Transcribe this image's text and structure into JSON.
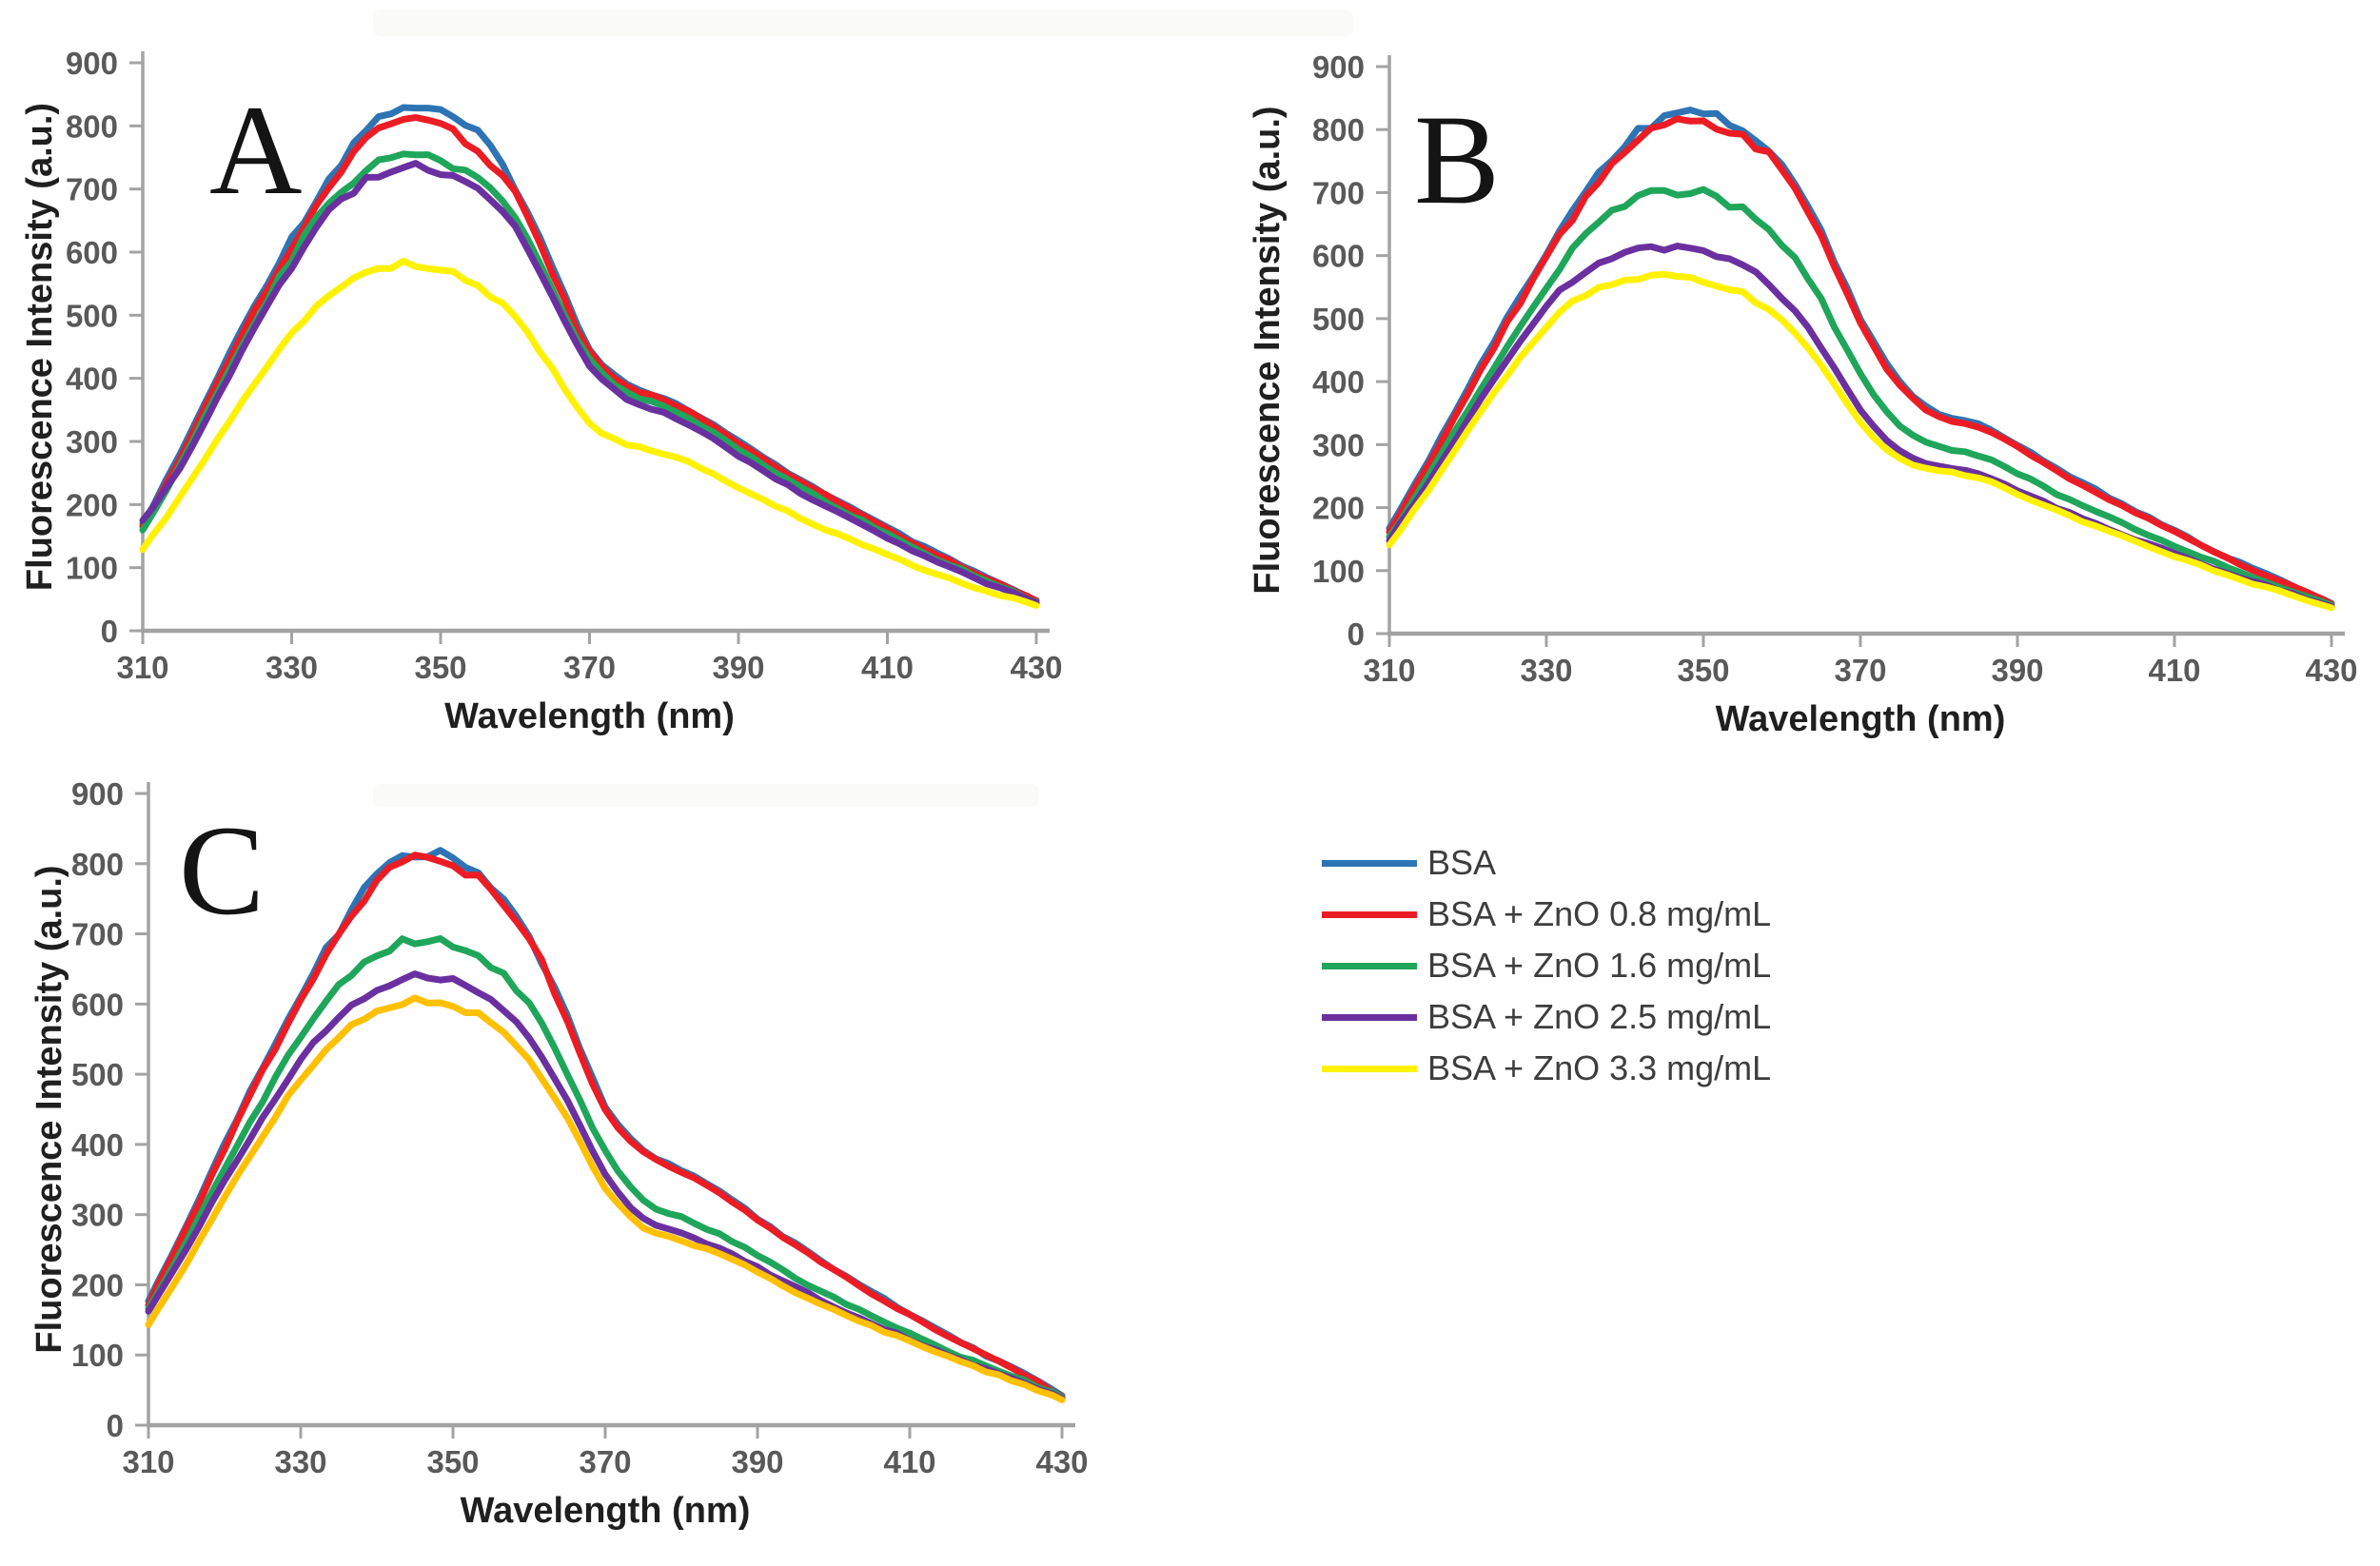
{
  "figure": {
    "panels": [
      "A",
      "B",
      "C"
    ]
  },
  "axes": {
    "xlabel": "Wavelength (nm)",
    "ylabel": "Fluorescence Intensity (a.u.)",
    "xticks": [
      310,
      330,
      350,
      370,
      390,
      410,
      430
    ],
    "yticks": [
      0,
      100,
      200,
      300,
      400,
      500,
      600,
      700,
      800,
      900
    ]
  },
  "colors": {
    "bsa_blue": "#2E74B5",
    "zno08_red": "#EC1C24",
    "zno16_green": "#1FA65A",
    "zno25_purple": "#6B30A0",
    "zno33_yellow": "#FFF200",
    "zno33_orange_panelC": "#FFC000",
    "axis_gray": "#A3A3A3",
    "tick_label_gray": "#595959"
  },
  "legend": {
    "position": "right-middle",
    "items": [
      {
        "label": "BSA",
        "color": "#2E74B5"
      },
      {
        "label": "BSA + ZnO 0.8 mg/mL",
        "color": "#EC1C24"
      },
      {
        "label": "BSA + ZnO 1.6 mg/mL",
        "color": "#1FA65A"
      },
      {
        "label": "BSA + ZnO 2.5 mg/mL",
        "color": "#6B30A0"
      },
      {
        "label": "BSA + ZnO 3.3 mg/mL",
        "color": "#FFF200"
      }
    ]
  },
  "chart_data": [
    {
      "type": "line",
      "panel": "A",
      "title": "",
      "xlabel": "Wavelength (nm)",
      "ylabel": "Fluorescence Intensity (a.u.)",
      "xlim": [
        310,
        430
      ],
      "ylim": [
        0,
        900
      ],
      "xticks": [
        310,
        330,
        350,
        370,
        390,
        410,
        430
      ],
      "yticks": [
        0,
        100,
        200,
        300,
        400,
        500,
        600,
        700,
        800,
        900
      ],
      "grid": false,
      "x": [
        310,
        315,
        320,
        325,
        330,
        335,
        340,
        345,
        350,
        355,
        360,
        365,
        370,
        375,
        380,
        385,
        390,
        395,
        400,
        405,
        410,
        415,
        420,
        425,
        430
      ],
      "series": [
        {
          "name": "BSA",
          "color": "#2E74B5",
          "values": [
            168,
            280,
            400,
            515,
            620,
            715,
            795,
            830,
            820,
            785,
            706,
            576,
            448,
            392,
            368,
            338,
            300,
            262,
            228,
            195,
            163,
            132,
            103,
            75,
            48
          ]
        },
        {
          "name": "BSA + ZnO 0.8 mg/mL",
          "color": "#EC1C24",
          "values": [
            164,
            272,
            392,
            505,
            610,
            703,
            782,
            812,
            800,
            764,
            690,
            566,
            442,
            388,
            366,
            336,
            298,
            260,
            226,
            193,
            161,
            130,
            101,
            74,
            47
          ]
        },
        {
          "name": "BSA + ZnO 1.6 mg/mL",
          "color": "#1FA65A",
          "values": [
            158,
            262,
            378,
            488,
            590,
            678,
            731,
            757,
            748,
            716,
            652,
            542,
            430,
            378,
            355,
            325,
            288,
            250,
            216,
            184,
            153,
            123,
            96,
            71,
            45
          ]
        },
        {
          "name": "BSA + ZnO 2.5 mg/mL",
          "color": "#6B30A0",
          "values": [
            174,
            258,
            368,
            478,
            578,
            663,
            714,
            737,
            728,
            698,
            638,
            530,
            420,
            368,
            345,
            315,
            278,
            241,
            208,
            177,
            147,
            118,
            92,
            68,
            44
          ]
        },
        {
          "name": "BSA + ZnO 3.3 mg/mL",
          "color": "#FFF200",
          "values": [
            128,
            212,
            302,
            392,
            470,
            532,
            566,
            581,
            572,
            546,
            496,
            415,
            328,
            296,
            281,
            258,
            228,
            198,
            170,
            145,
            120,
            97,
            76,
            57,
            40
          ]
        }
      ]
    },
    {
      "type": "line",
      "panel": "B",
      "title": "",
      "xlabel": "Wavelength (nm)",
      "ylabel": "Fluorescence Intensity (a.u.)",
      "xlim": [
        310,
        430
      ],
      "ylim": [
        0,
        900
      ],
      "xticks": [
        310,
        330,
        350,
        370,
        390,
        410,
        430
      ],
      "yticks": [
        0,
        100,
        200,
        300,
        400,
        500,
        600,
        700,
        800,
        900
      ],
      "grid": false,
      "x": [
        310,
        315,
        320,
        325,
        330,
        335,
        340,
        345,
        350,
        355,
        360,
        365,
        370,
        375,
        380,
        385,
        390,
        395,
        400,
        405,
        410,
        415,
        420,
        425,
        430
      ],
      "series": [
        {
          "name": "BSA",
          "color": "#2E74B5",
          "values": [
            166,
            275,
            390,
            500,
            605,
            700,
            778,
            820,
            823,
            800,
            742,
            640,
            500,
            400,
            348,
            332,
            300,
            262,
            228,
            195,
            163,
            132,
            103,
            76,
            48
          ]
        },
        {
          "name": "BSA + ZnO 0.8 mg/mL",
          "color": "#EC1C24",
          "values": [
            161,
            268,
            382,
            492,
            597,
            692,
            768,
            808,
            812,
            790,
            734,
            632,
            492,
            394,
            344,
            328,
            296,
            258,
            225,
            192,
            161,
            130,
            101,
            75,
            47
          ]
        },
        {
          "name": "BSA + ZnO 1.6 mg/mL",
          "color": "#1FA65A",
          "values": [
            153,
            250,
            355,
            455,
            550,
            632,
            681,
            700,
            698,
            672,
            618,
            528,
            412,
            330,
            298,
            283,
            255,
            222,
            194,
            166,
            140,
            114,
            90,
            67,
            45
          ]
        },
        {
          "name": "BSA + ZnO 2.5 mg/mL",
          "color": "#6B30A0",
          "values": [
            149,
            240,
            340,
            432,
            518,
            578,
            604,
            611,
            606,
            584,
            536,
            455,
            355,
            290,
            266,
            253,
            228,
            200,
            175,
            150,
            127,
            104,
            83,
            63,
            43
          ]
        },
        {
          "name": "BSA + ZnO 3.3 mg/mL",
          "color": "#FFF200",
          "values": [
            141,
            228,
            322,
            410,
            488,
            538,
            560,
            566,
            560,
            540,
            498,
            425,
            335,
            277,
            259,
            247,
            222,
            195,
            170,
            146,
            123,
            101,
            80,
            61,
            41
          ]
        }
      ]
    },
    {
      "type": "line",
      "panel": "C",
      "title": "",
      "xlabel": "Wavelength (nm)",
      "ylabel": "Fluorescence Intensity (a.u.)",
      "xlim": [
        310,
        430
      ],
      "ylim": [
        0,
        900
      ],
      "xticks": [
        310,
        330,
        350,
        370,
        390,
        410,
        430
      ],
      "yticks": [
        0,
        100,
        200,
        300,
        400,
        500,
        600,
        700,
        800,
        900
      ],
      "grid": false,
      "x": [
        310,
        315,
        320,
        325,
        330,
        335,
        340,
        345,
        350,
        355,
        360,
        365,
        370,
        375,
        380,
        385,
        390,
        395,
        400,
        405,
        410,
        415,
        420,
        425,
        430
      ],
      "series": [
        {
          "name": "BSA",
          "color": "#2E74B5",
          "values": [
            176,
            285,
            400,
            510,
            612,
            705,
            780,
            815,
            806,
            768,
            698,
            582,
            455,
            392,
            364,
            333,
            295,
            258,
            223,
            190,
            158,
            128,
            100,
            73,
            42
          ]
        },
        {
          "name": "BSA + ZnO 0.8 mg/mL",
          "color": "#EC1C24",
          "values": [
            172,
            280,
            394,
            504,
            606,
            698,
            772,
            808,
            799,
            762,
            693,
            577,
            451,
            389,
            361,
            330,
            293,
            256,
            221,
            188,
            157,
            127,
            99,
            72,
            41
          ]
        },
        {
          "name": "BSA + ZnO 1.6 mg/mL",
          "color": "#1FA65A",
          "values": [
            166,
            262,
            365,
            462,
            552,
            624,
            670,
            691,
            684,
            656,
            598,
            500,
            390,
            320,
            296,
            272,
            242,
            210,
            182,
            155,
            130,
            106,
            84,
            63,
            40
          ]
        },
        {
          "name": "BSA + ZnO 2.5 mg/mL",
          "color": "#6B30A0",
          "values": [
            161,
            252,
            348,
            438,
            520,
            582,
            622,
            641,
            633,
            606,
            552,
            462,
            358,
            294,
            273,
            252,
            225,
            196,
            170,
            145,
            122,
            100,
            79,
            60,
            38
          ]
        },
        {
          "name": "BSA + ZnO 3.3 mg/mL",
          "color": "#FFC000",
          "values": [
            143,
            230,
            324,
            412,
            492,
            554,
            590,
            606,
            598,
            572,
            522,
            437,
            338,
            282,
            263,
            244,
            218,
            190,
            165,
            141,
            119,
            97,
            77,
            58,
            36
          ]
        }
      ]
    }
  ]
}
